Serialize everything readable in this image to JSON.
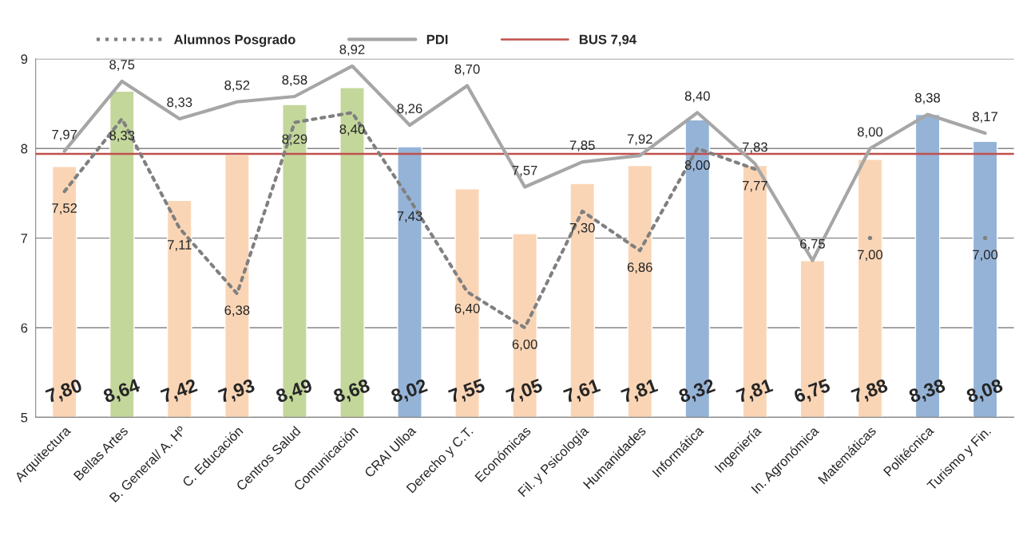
{
  "chart_data": {
    "type": "bar",
    "categories": [
      "Arquitectura",
      "Bellas Artes",
      "B. General/ A. Hº",
      "C. Educación",
      "Centros Salud",
      "Comunicación",
      "CRAI Ulloa",
      "Derecho y C.T.",
      "Económicas",
      "Fil. y Psicología",
      "Humanidades",
      "Informática",
      "Ingeniería",
      "In. Agronómica",
      "Matemáticas",
      "Politécnica",
      "Turismo y Fin."
    ],
    "series": [
      {
        "values": [
          7.8,
          8.64,
          7.42,
          7.93,
          8.49,
          8.68,
          8.02,
          7.55,
          7.05,
          7.61,
          7.81,
          8.32,
          7.81,
          6.75,
          7.88,
          8.38,
          8.08
        ],
        "value_labels": [
          "7,80",
          "8,64",
          "7,42",
          "7,93",
          "8,49",
          "8,68",
          "8,02",
          "7,55",
          "7,05",
          "7,61",
          "7,81",
          "8,32",
          "7,81",
          "6,75",
          "7,88",
          "8,38",
          "8,08"
        ],
        "colors": [
          "#fad5b5",
          "#c4d79b",
          "#fad5b5",
          "#fad5b5",
          "#c4d79b",
          "#c4d79b",
          "#95b3d7",
          "#fad5b5",
          "#fad5b5",
          "#fad5b5",
          "#fad5b5",
          "#95b3d7",
          "#fad5b5",
          "#fad5b5",
          "#fad5b5",
          "#95b3d7",
          "#95b3d7"
        ]
      },
      {
        "type": "line",
        "name": "Alumnos Posgrado",
        "color": "#808080",
        "line_style": "dotted",
        "values": [
          7.52,
          8.33,
          7.11,
          6.38,
          8.29,
          8.4,
          7.43,
          6.4,
          6.0,
          7.3,
          6.86,
          8.0,
          7.77,
          null,
          7.0,
          null,
          7.0
        ],
        "value_labels": [
          "7,52",
          "8,33",
          "7,11",
          "6,38",
          "8,29",
          "8,40",
          "7,43",
          "6,40",
          "6,00",
          "7,30",
          "6,86",
          "8,00",
          "7,77",
          null,
          "7,00",
          null,
          "7,00"
        ]
      },
      {
        "type": "line",
        "name": "PDI",
        "color": "#a6a6a6",
        "line_style": "solid",
        "values": [
          7.97,
          8.75,
          8.33,
          8.52,
          8.58,
          8.92,
          8.26,
          8.7,
          7.57,
          7.85,
          7.92,
          8.4,
          7.83,
          6.75,
          8.0,
          8.38,
          8.17
        ],
        "value_labels": [
          "7,97",
          "8,75",
          "8,33",
          "8,52",
          "8,58",
          "8,92",
          "8,26",
          "8,70",
          "7,57",
          "7,85",
          "7,92",
          "8,40",
          "7,83",
          "6,75",
          "8,00",
          "8,38",
          "8,17"
        ]
      }
    ],
    "ref_lines": [
      {
        "axis": "y",
        "value": 7.94,
        "label": "BUS 7,94",
        "color": "#c0504d"
      }
    ],
    "ylim": [
      5,
      9
    ],
    "yticks": [
      5,
      6,
      7,
      8,
      9
    ],
    "grid": "y",
    "legend": "top left"
  }
}
